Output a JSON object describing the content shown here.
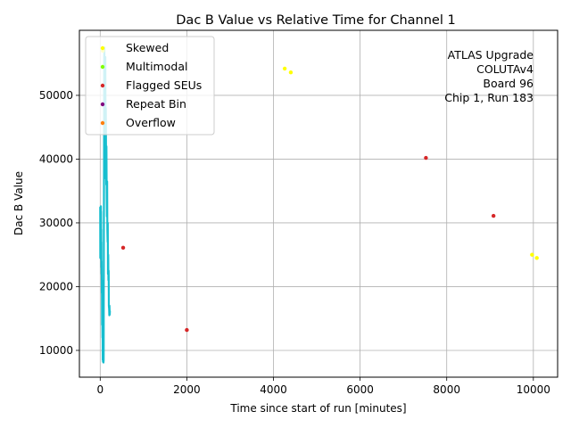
{
  "chart_data": {
    "type": "scatter",
    "title": "Dac B Value vs Relative Time for Channel 1",
    "xlabel": "Time since start of run [minutes]",
    "ylabel": "Dac B Value",
    "xlim": [
      -480,
      10560
    ],
    "ylim": [
      5800,
      60200
    ],
    "x_ticks": [
      0,
      2000,
      4000,
      6000,
      8000,
      10000
    ],
    "y_ticks": [
      10000,
      20000,
      30000,
      40000,
      50000
    ],
    "grid": true,
    "legend": {
      "placement": "top-left"
    },
    "annotation": [
      "ATLAS Upgrade",
      "COLUTAv4",
      "Board 96",
      "Chip 1, Run 183"
    ],
    "main_trace": {
      "color": "#17becf",
      "x": [
        0,
        2,
        4,
        6,
        8,
        10,
        12,
        14,
        16,
        18,
        20,
        22,
        24,
        26,
        28,
        30,
        33,
        36,
        40,
        44,
        48,
        52,
        55,
        58,
        61,
        64,
        67,
        70,
        73,
        76,
        80,
        84,
        88,
        92,
        96,
        100,
        104,
        108,
        112,
        116,
        120,
        125,
        130,
        135,
        140,
        145,
        150,
        155,
        160,
        165,
        170,
        175,
        180,
        185,
        190,
        195,
        200,
        205,
        210,
        215,
        220,
        225
      ],
      "y": [
        32500,
        24500,
        32000,
        25000,
        32500,
        24800,
        31500,
        26000,
        32600,
        24300,
        31800,
        25500,
        29000,
        23000,
        27000,
        22000,
        24000,
        19000,
        21000,
        14000,
        18000,
        12000,
        13500,
        8500,
        10500,
        8200,
        9000,
        8300,
        8600,
        8100,
        8500,
        28000,
        40000,
        56000,
        57500,
        52000,
        46000,
        55000,
        48000,
        44000,
        56000,
        37000,
        48000,
        40000,
        36000,
        42000,
        34000,
        31000,
        36500,
        29000,
        27000,
        30000,
        22000,
        25000,
        21000,
        22500,
        17000,
        16500,
        15500,
        17000,
        15600,
        16200
      ]
    },
    "series": [
      {
        "name": "Skewed",
        "color": "#ffff00",
        "points": [
          [
            60,
            57000
          ],
          [
            4260,
            54200
          ],
          [
            4400,
            53600
          ],
          [
            9970,
            25000
          ],
          [
            10080,
            24500
          ]
        ]
      },
      {
        "name": "Multimodal",
        "color": "#7fff00",
        "points": []
      },
      {
        "name": "Flagged SEUs",
        "color": "#d62728",
        "points": [
          [
            530,
            26100
          ],
          [
            2000,
            13200
          ],
          [
            7520,
            40200
          ],
          [
            9080,
            31100
          ]
        ]
      },
      {
        "name": "Repeat Bin",
        "color": "#800080",
        "points": []
      },
      {
        "name": "Overflow",
        "color": "#ff7f0e",
        "points": []
      }
    ]
  }
}
